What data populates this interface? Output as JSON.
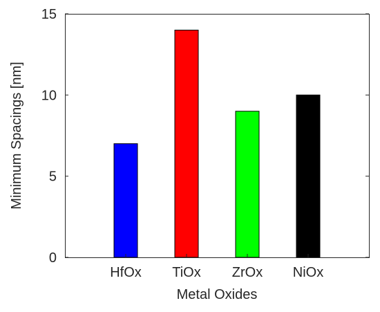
{
  "chart_data": {
    "type": "bar",
    "categories": [
      "HfOx",
      "TiOx",
      "ZrOx",
      "NiOx"
    ],
    "values": [
      7,
      14,
      9,
      10
    ],
    "colors": [
      "#0000ff",
      "#ff0000",
      "#00ff00",
      "#000000"
    ],
    "xlabel": "Metal Oxides",
    "ylabel": "Minimum Spacings [nm]",
    "ylim": [
      0,
      15
    ],
    "yticks": [
      0,
      5,
      10,
      15
    ],
    "ytick_labels": [
      "0",
      "5",
      "10",
      "15"
    ],
    "grid": false,
    "box": true
  }
}
